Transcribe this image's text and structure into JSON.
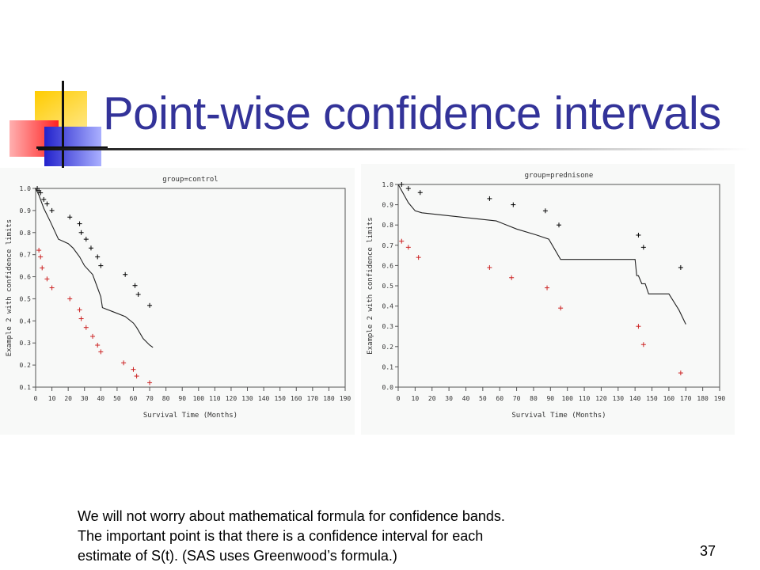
{
  "slide": {
    "title": "Point-wise confidence intervals",
    "footer_lines": [
      "We will not worry about mathematical formula for confidence bands.",
      "The important point is that there is a confidence interval for each",
      "estimate of S(t). (SAS uses Greenwood’s formula.)"
    ],
    "page_number": "37",
    "colors": {
      "title": "#333399",
      "upper_ci": "#000000",
      "lower_ci": "#cc2222",
      "survival": "#222222"
    }
  },
  "chart_data": [
    {
      "type": "line",
      "title": "group=control",
      "xlabel": "Survival Time (Months)",
      "ylabel": "Example 2 with confidence limits",
      "xlim": [
        0,
        190
      ],
      "ylim": [
        0.1,
        1.0
      ],
      "xticks": [
        "0",
        "10",
        "20",
        "30",
        "40",
        "50",
        "60",
        "70",
        "80",
        "90",
        "100",
        "110",
        "120",
        "130",
        "140",
        "150",
        "160",
        "170",
        "180",
        "190"
      ],
      "yticks": [
        "0.1",
        "0.2",
        "0.3",
        "0.4",
        "0.5",
        "0.6",
        "0.7",
        "0.8",
        "0.9",
        "1.0"
      ],
      "series": [
        {
          "role": "survival",
          "x": [
            0,
            2,
            5,
            9,
            14,
            20,
            23,
            27,
            30,
            35,
            38,
            40,
            41,
            48,
            55,
            60,
            62,
            66,
            70,
            72
          ],
          "y": [
            1.0,
            0.97,
            0.91,
            0.85,
            0.77,
            0.75,
            0.73,
            0.69,
            0.65,
            0.61,
            0.55,
            0.51,
            0.46,
            0.44,
            0.42,
            0.39,
            0.37,
            0.32,
            0.29,
            0.28
          ]
        },
        {
          "role": "upper_ci",
          "x": [
            1,
            2,
            3,
            5,
            7,
            10,
            21,
            27,
            28,
            31,
            34,
            38,
            40,
            55,
            61,
            63,
            70
          ],
          "y": [
            1.0,
            0.99,
            0.98,
            0.95,
            0.93,
            0.9,
            0.87,
            0.84,
            0.8,
            0.77,
            0.73,
            0.69,
            0.65,
            0.61,
            0.56,
            0.52,
            0.47
          ]
        },
        {
          "role": "lower_ci",
          "x": [
            2,
            3,
            4,
            7,
            10,
            21,
            27,
            28,
            31,
            35,
            38,
            40,
            54,
            60,
            62,
            70
          ],
          "y": [
            0.72,
            0.69,
            0.64,
            0.59,
            0.55,
            0.5,
            0.45,
            0.41,
            0.37,
            0.33,
            0.29,
            0.26,
            0.21,
            0.18,
            0.15,
            0.12
          ]
        }
      ]
    },
    {
      "type": "line",
      "title": "group=prednisone",
      "xlabel": "Survival Time (Months)",
      "ylabel": "Example 2 with confidence limits",
      "xlim": [
        0,
        190
      ],
      "ylim": [
        0.0,
        1.0
      ],
      "xticks": [
        "0",
        "10",
        "20",
        "30",
        "40",
        "50",
        "60",
        "70",
        "80",
        "90",
        "100",
        "110",
        "120",
        "130",
        "140",
        "150",
        "160",
        "170",
        "180",
        "190"
      ],
      "yticks": [
        "0.0",
        "0.1",
        "0.2",
        "0.3",
        "0.4",
        "0.5",
        "0.6",
        "0.7",
        "0.8",
        "0.9",
        "1.0"
      ],
      "series": [
        {
          "role": "survival",
          "x": [
            0,
            2,
            6,
            10,
            14,
            58,
            70,
            82,
            89,
            96,
            140,
            141,
            142,
            144,
            146,
            148,
            160,
            166,
            170
          ],
          "y": [
            1.0,
            0.97,
            0.91,
            0.87,
            0.86,
            0.82,
            0.78,
            0.75,
            0.73,
            0.63,
            0.63,
            0.55,
            0.55,
            0.51,
            0.51,
            0.46,
            0.46,
            0.38,
            0.31
          ]
        },
        {
          "role": "upper_ci",
          "x": [
            2,
            6,
            13,
            54,
            68,
            87,
            95,
            142,
            145,
            167
          ],
          "y": [
            1.0,
            0.98,
            0.96,
            0.93,
            0.9,
            0.87,
            0.8,
            0.75,
            0.69,
            0.59
          ]
        },
        {
          "role": "lower_ci",
          "x": [
            2,
            6,
            12,
            54,
            67,
            88,
            96,
            142,
            145,
            167
          ],
          "y": [
            0.72,
            0.69,
            0.64,
            0.59,
            0.54,
            0.49,
            0.39,
            0.3,
            0.21,
            0.07
          ]
        }
      ]
    }
  ]
}
